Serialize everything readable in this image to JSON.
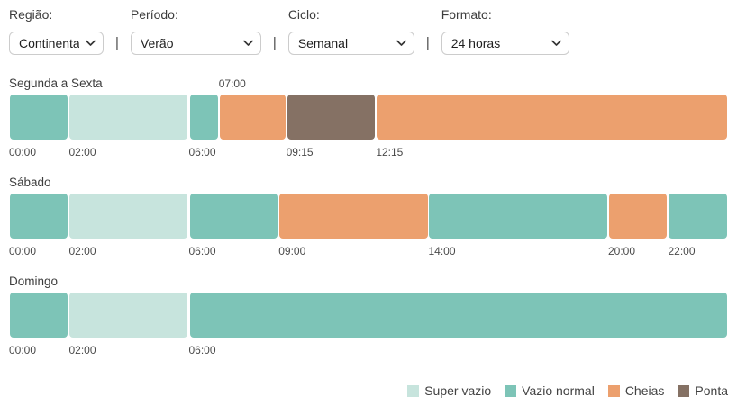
{
  "filters": [
    {
      "id": "regiao",
      "label": "Região:",
      "value": "Continental"
    },
    {
      "id": "periodo",
      "label": "Período:",
      "value": "Verão"
    },
    {
      "id": "ciclo",
      "label": "Ciclo:",
      "value": "Semanal"
    },
    {
      "id": "formato",
      "label": "Formato:",
      "value": "24 horas"
    }
  ],
  "filter_separator": "|",
  "chart_data": {
    "type": "timeline-bands",
    "unit": "hours",
    "x_range": [
      0,
      24
    ],
    "period_colors": {
      "super-vazio": "#c7e4dd",
      "vazio-normal": "#7dc4b7",
      "cheias": "#eca06e",
      "ponta": "#857164"
    },
    "days": [
      {
        "title": "Segunda a Sexta",
        "segments": [
          {
            "period": "vazio-normal",
            "start": 0,
            "end": 2
          },
          {
            "period": "super-vazio",
            "start": 2,
            "end": 6
          },
          {
            "period": "vazio-normal",
            "start": 6,
            "end": 7
          },
          {
            "period": "cheias",
            "start": 7,
            "end": 9.25
          },
          {
            "period": "ponta",
            "start": 9.25,
            "end": 12.25
          },
          {
            "period": "cheias",
            "start": 12.25,
            "end": 24
          }
        ],
        "ticks_above": [
          {
            "time": "07:00",
            "hour": 7
          }
        ],
        "ticks_below": [
          {
            "time": "00:00",
            "hour": 0
          },
          {
            "time": "02:00",
            "hour": 2
          },
          {
            "time": "06:00",
            "hour": 6
          },
          {
            "time": "09:15",
            "hour": 9.25
          },
          {
            "time": "12:15",
            "hour": 12.25
          }
        ]
      },
      {
        "title": "Sábado",
        "segments": [
          {
            "period": "vazio-normal",
            "start": 0,
            "end": 2
          },
          {
            "period": "super-vazio",
            "start": 2,
            "end": 6
          },
          {
            "period": "vazio-normal",
            "start": 6,
            "end": 9
          },
          {
            "period": "cheias",
            "start": 9,
            "end": 14
          },
          {
            "period": "vazio-normal",
            "start": 14,
            "end": 20
          },
          {
            "period": "cheias",
            "start": 20,
            "end": 22
          },
          {
            "period": "vazio-normal",
            "start": 22,
            "end": 24
          }
        ],
        "ticks_above": [],
        "ticks_below": [
          {
            "time": "00:00",
            "hour": 0
          },
          {
            "time": "02:00",
            "hour": 2
          },
          {
            "time": "06:00",
            "hour": 6
          },
          {
            "time": "09:00",
            "hour": 9
          },
          {
            "time": "14:00",
            "hour": 14
          },
          {
            "time": "20:00",
            "hour": 20
          },
          {
            "time": "22:00",
            "hour": 22
          }
        ]
      },
      {
        "title": "Domingo",
        "segments": [
          {
            "period": "vazio-normal",
            "start": 0,
            "end": 2
          },
          {
            "period": "super-vazio",
            "start": 2,
            "end": 6
          },
          {
            "period": "vazio-normal",
            "start": 6,
            "end": 24
          }
        ],
        "ticks_above": [],
        "ticks_below": [
          {
            "time": "00:00",
            "hour": 0
          },
          {
            "time": "02:00",
            "hour": 2
          },
          {
            "time": "06:00",
            "hour": 6
          }
        ]
      }
    ],
    "legend": [
      {
        "period": "super-vazio",
        "label": "Super vazio"
      },
      {
        "period": "vazio-normal",
        "label": "Vazio normal"
      },
      {
        "period": "cheias",
        "label": "Cheias"
      },
      {
        "period": "ponta",
        "label": "Ponta"
      }
    ]
  }
}
